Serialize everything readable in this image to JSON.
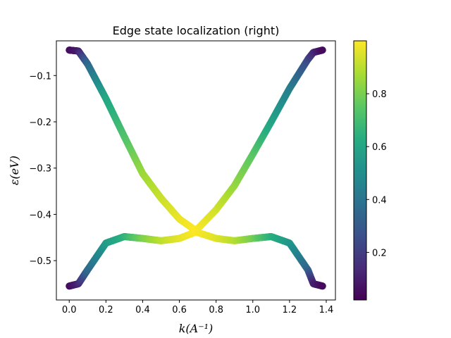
{
  "chart_data": {
    "type": "scatter",
    "title": "Edge state localization (right)",
    "xlabel": "k(A⁻¹)",
    "ylabel": "ε(eV)",
    "xlim": [
      -0.07,
      1.45
    ],
    "ylim": [
      -0.585,
      -0.025
    ],
    "xticks": [
      0.0,
      0.2,
      0.4,
      0.6,
      0.8,
      1.0,
      1.2,
      1.4
    ],
    "xtick_labels": [
      "0.0",
      "0.2",
      "0.4",
      "0.6",
      "0.8",
      "1.0",
      "1.2",
      "1.4"
    ],
    "yticks": [
      -0.1,
      -0.2,
      -0.3,
      -0.4,
      -0.5
    ],
    "ytick_labels": [
      "−0.1",
      "−0.2",
      "−0.3",
      "−0.4",
      "−0.5"
    ],
    "grid": false,
    "colormap": "viridis",
    "colorbar": {
      "range": [
        0.02,
        1.0
      ],
      "ticks": [
        0.2,
        0.4,
        0.6,
        0.8
      ],
      "tick_labels": [
        "0.2",
        "0.4",
        "0.6",
        "0.8"
      ]
    },
    "series": [
      {
        "x": [
          0.0,
          0.05,
          0.1,
          0.2,
          0.3,
          0.4,
          0.5,
          0.6,
          0.69,
          0.8,
          0.9,
          1.0,
          1.1,
          1.2,
          1.3,
          1.33,
          1.38
        ],
        "y": [
          -0.045,
          -0.047,
          -0.075,
          -0.15,
          -0.232,
          -0.312,
          -0.365,
          -0.41,
          -0.435,
          -0.39,
          -0.338,
          -0.27,
          -0.2,
          -0.128,
          -0.065,
          -0.05,
          -0.045
        ],
        "color_values": [
          0.05,
          0.1,
          0.35,
          0.6,
          0.72,
          0.85,
          0.92,
          0.97,
          1.0,
          0.94,
          0.85,
          0.75,
          0.6,
          0.45,
          0.25,
          0.15,
          0.05
        ]
      },
      {
        "x": [
          0.0,
          0.05,
          0.1,
          0.2,
          0.3,
          0.4,
          0.5,
          0.6,
          0.69,
          0.8,
          0.9,
          1.0,
          1.1,
          1.2,
          1.3,
          1.33,
          1.38
        ],
        "y": [
          -0.555,
          -0.55,
          -0.52,
          -0.462,
          -0.448,
          -0.452,
          -0.457,
          -0.452,
          -0.438,
          -0.452,
          -0.457,
          -0.452,
          -0.448,
          -0.462,
          -0.52,
          -0.55,
          -0.555
        ],
        "color_values": [
          0.05,
          0.12,
          0.35,
          0.55,
          0.65,
          0.8,
          0.9,
          0.96,
          1.0,
          0.96,
          0.9,
          0.8,
          0.65,
          0.55,
          0.35,
          0.12,
          0.05
        ]
      }
    ]
  }
}
